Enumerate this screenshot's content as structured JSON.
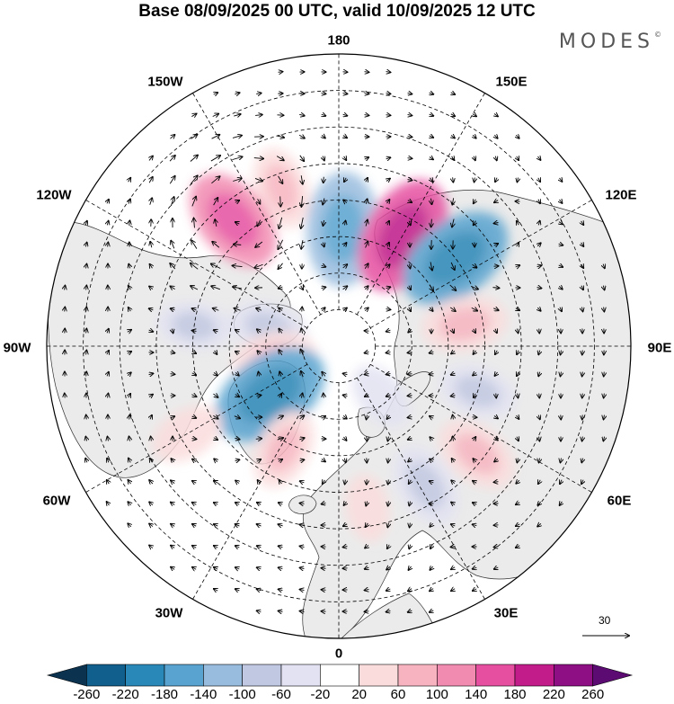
{
  "title": "Base 08/09/2025 00 UTC, valid 10/09/2025 12 UTC",
  "brand": {
    "name": "MODES",
    "mark": "©"
  },
  "map": {
    "projection": "north-polar-stereographic",
    "longitude_labels": {
      "lon_180": "180",
      "lon_150e": "150E",
      "lon_120e": "120E",
      "lon_90e": "90E",
      "lon_60e": "60E",
      "lon_30e": "30E",
      "lon_0": "0",
      "lon_30w": "30W",
      "lon_60w": "60W",
      "lon_90w": "90W",
      "lon_120w": "120W",
      "lon_150w": "150W"
    },
    "reference_vector": {
      "label": "30"
    }
  },
  "colorbar": {
    "labels": [
      "-260",
      "-220",
      "-180",
      "-140",
      "-100",
      "-60",
      "-20",
      "20",
      "60",
      "100",
      "140",
      "180",
      "220",
      "260"
    ],
    "colors": [
      "#0b3350",
      "#105f8c",
      "#2a88b8",
      "#58a3cf",
      "#98bcde",
      "#c1c8e1",
      "#e2e2f2",
      "#ffffff",
      "#fbdcdc",
      "#f7b4c0",
      "#f28bb0",
      "#e64fa0",
      "#c21c8b",
      "#8e0f84",
      "#5c0b73"
    ]
  },
  "anomaly_cells": [
    {
      "lat": 58,
      "lon": 178,
      "value": -170
    },
    {
      "lat": 55,
      "lon": 150,
      "value": 185
    },
    {
      "lat": 50,
      "lon": 127,
      "value": -180
    },
    {
      "lat": 55,
      "lon": 100,
      "value": 90
    },
    {
      "lat": 50,
      "lon": 72,
      "value": -70
    },
    {
      "lat": 42,
      "lon": 52,
      "value": 90
    },
    {
      "lat": 45,
      "lon": 32,
      "value": -90
    },
    {
      "lat": 44,
      "lon": 200,
      "value": 80
    },
    {
      "lat": 45,
      "lon": 220,
      "value": 150
    },
    {
      "lat": 70,
      "lon": 255,
      "value": -70
    },
    {
      "lat": 72,
      "lon": 282,
      "value": 90
    },
    {
      "lat": 67,
      "lon": 305,
      "value": -190
    },
    {
      "lat": 58,
      "lon": 332,
      "value": 80
    },
    {
      "lat": 42,
      "lon": 300,
      "value": 60
    },
    {
      "lat": 50,
      "lon": 262,
      "value": -60
    },
    {
      "lat": 45,
      "lon": 10,
      "value": 40
    },
    {
      "lat": 72,
      "lon": 40,
      "value": -50
    }
  ]
}
